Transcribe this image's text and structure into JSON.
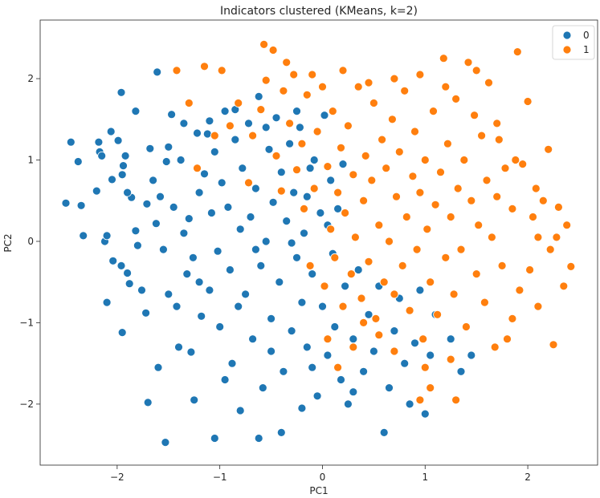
{
  "chart_data": {
    "type": "scatter",
    "title": "Indicators clustered (KMeans, k=2)",
    "xlabel": "PC1",
    "ylabel": "PC2",
    "xlim": [
      -2.75,
      2.68
    ],
    "ylim": [
      -2.75,
      2.72
    ],
    "xticks": [
      -2,
      -1,
      0,
      1,
      2
    ],
    "yticks": [
      -2,
      -1,
      0,
      1,
      2
    ],
    "xtick_labels": [
      "−2",
      "−1",
      "0",
      "1",
      "2"
    ],
    "ytick_labels": [
      "−2",
      "−1",
      "0",
      "1",
      "2"
    ],
    "grid": false,
    "legend": {
      "placement": "top-right",
      "entries": [
        "0",
        "1"
      ]
    },
    "colors": {
      "cluster_0": "#1f77b4",
      "cluster_1": "#ff7f0e",
      "marker_edge": "#ffffff"
    },
    "series": [
      {
        "name": "0",
        "color": "#1f77b4",
        "points": [
          [
            -2.5,
            0.47
          ],
          [
            -2.45,
            1.22
          ],
          [
            -2.38,
            0.98
          ],
          [
            -2.35,
            0.44
          ],
          [
            -2.33,
            0.07
          ],
          [
            -2.2,
            0.62
          ],
          [
            -2.18,
            1.22
          ],
          [
            -2.17,
            1.1
          ],
          [
            -2.15,
            1.05
          ],
          [
            -2.12,
            0.0
          ],
          [
            -2.1,
            0.07
          ],
          [
            -2.06,
            1.35
          ],
          [
            -2.05,
            0.76
          ],
          [
            -2.04,
            -0.24
          ],
          [
            -1.99,
            1.24
          ],
          [
            -1.96,
            1.83
          ],
          [
            -1.96,
            -0.3
          ],
          [
            -1.95,
            0.82
          ],
          [
            -1.94,
            0.93
          ],
          [
            -1.92,
            1.05
          ],
          [
            -1.9,
            -0.39
          ],
          [
            -1.88,
            -0.52
          ],
          [
            -1.86,
            0.54
          ],
          [
            -1.82,
            0.13
          ],
          [
            -1.82,
            1.6
          ],
          [
            -1.8,
            -0.05
          ],
          [
            -1.76,
            -0.6
          ],
          [
            -1.71,
            0.46
          ],
          [
            -1.68,
            1.14
          ],
          [
            -1.62,
            0.22
          ],
          [
            -1.61,
            2.08
          ],
          [
            -1.58,
            0.55
          ],
          [
            -1.55,
            -0.1
          ],
          [
            -1.52,
            0.98
          ],
          [
            -1.5,
            1.16
          ],
          [
            -1.47,
            1.56
          ],
          [
            -1.45,
            0.42
          ],
          [
            -1.42,
            -0.8
          ],
          [
            -1.38,
            1.0
          ],
          [
            -1.35,
            0.1
          ],
          [
            -1.32,
            -0.4
          ],
          [
            -1.3,
            0.28
          ],
          [
            -1.28,
            -1.36
          ],
          [
            -1.26,
            -0.2
          ],
          [
            -1.22,
            1.33
          ],
          [
            -1.2,
            0.6
          ],
          [
            -1.18,
            -0.92
          ],
          [
            -1.15,
            0.83
          ],
          [
            -1.12,
            1.32
          ],
          [
            -1.1,
            -0.6
          ],
          [
            -1.08,
            0.35
          ],
          [
            -1.05,
            1.1
          ],
          [
            -1.02,
            -0.12
          ],
          [
            -1.0,
            -1.05
          ],
          [
            -0.98,
            0.72
          ],
          [
            -0.95,
            1.6
          ],
          [
            -0.92,
            0.42
          ],
          [
            -0.9,
            -0.35
          ],
          [
            -0.88,
            -1.5
          ],
          [
            -0.85,
            1.25
          ],
          [
            -0.82,
            -0.8
          ],
          [
            -0.8,
            0.15
          ],
          [
            -0.78,
            0.9
          ],
          [
            -0.75,
            -0.65
          ],
          [
            -0.72,
            1.45
          ],
          [
            -0.7,
            0.3
          ],
          [
            -0.68,
            -1.2
          ],
          [
            -0.65,
            0.65
          ],
          [
            -0.62,
            1.78
          ],
          [
            -0.6,
            -0.3
          ],
          [
            -0.58,
            -1.8
          ],
          [
            -0.55,
            0.0
          ],
          [
            -0.52,
            1.13
          ],
          [
            -0.5,
            -0.95
          ],
          [
            -0.48,
            0.48
          ],
          [
            -0.45,
            1.52
          ],
          [
            -0.42,
            -0.5
          ],
          [
            -0.4,
            0.85
          ],
          [
            -0.38,
            -1.6
          ],
          [
            -0.35,
            0.25
          ],
          [
            -0.32,
            1.2
          ],
          [
            -0.3,
            -1.1
          ],
          [
            -0.28,
            0.6
          ],
          [
            -0.25,
            -0.2
          ],
          [
            -0.22,
            1.4
          ],
          [
            -0.2,
            -0.75
          ],
          [
            -0.18,
            0.1
          ],
          [
            -0.15,
            -1.3
          ],
          [
            -0.12,
            0.9
          ],
          [
            -0.1,
            -0.4
          ],
          [
            -0.08,
            1.0
          ],
          [
            -0.05,
            -1.9
          ],
          [
            -0.02,
            0.35
          ],
          [
            0.0,
            -0.8
          ],
          [
            0.02,
            1.55
          ],
          [
            0.05,
            -1.4
          ],
          [
            0.08,
            0.75
          ],
          [
            0.1,
            -0.15
          ],
          [
            0.12,
            -1.05
          ],
          [
            0.15,
            0.4
          ],
          [
            0.18,
            -1.7
          ],
          [
            0.2,
            0.95
          ],
          [
            0.22,
            -0.55
          ],
          [
            0.25,
            -2.0
          ],
          [
            0.3,
            -1.2
          ],
          [
            0.35,
            -0.35
          ],
          [
            0.4,
            -1.6
          ],
          [
            0.45,
            -0.9
          ],
          [
            0.5,
            -1.35
          ],
          [
            0.55,
            -0.55
          ],
          [
            0.6,
            -2.35
          ],
          [
            0.65,
            -1.8
          ],
          [
            0.7,
            -1.1
          ],
          [
            0.75,
            -0.7
          ],
          [
            0.8,
            -1.5
          ],
          [
            0.85,
            -2.0
          ],
          [
            0.9,
            -1.25
          ],
          [
            0.95,
            -0.6
          ],
          [
            1.0,
            -2.12
          ],
          [
            1.05,
            -1.4
          ],
          [
            1.1,
            -0.9
          ],
          [
            1.25,
            -1.2
          ],
          [
            1.35,
            -1.6
          ],
          [
            1.45,
            -1.4
          ],
          [
            -1.53,
            -2.47
          ],
          [
            -1.05,
            -2.42
          ],
          [
            -0.62,
            -2.42
          ],
          [
            -0.4,
            -2.35
          ],
          [
            -1.7,
            -1.98
          ],
          [
            -1.25,
            -1.95
          ],
          [
            -0.8,
            -2.08
          ],
          [
            -0.2,
            -2.05
          ],
          [
            -1.95,
            -1.12
          ],
          [
            -1.6,
            -1.55
          ],
          [
            -1.4,
            -1.3
          ],
          [
            -0.95,
            -1.7
          ],
          [
            -0.5,
            -1.35
          ],
          [
            -0.1,
            -1.55
          ],
          [
            0.3,
            -1.85
          ],
          [
            -2.1,
            -0.75
          ],
          [
            -1.72,
            -0.88
          ],
          [
            -1.5,
            -0.65
          ],
          [
            -1.2,
            -0.5
          ],
          [
            -0.65,
            -0.1
          ],
          [
            -0.3,
            -0.02
          ],
          [
            -0.15,
            0.55
          ],
          [
            0.05,
            0.2
          ],
          [
            -1.9,
            0.6
          ],
          [
            -1.65,
            0.75
          ],
          [
            -1.35,
            1.45
          ],
          [
            -1.1,
            1.48
          ],
          [
            -0.85,
            1.62
          ],
          [
            -0.55,
            1.4
          ],
          [
            -0.25,
            1.6
          ]
        ]
      },
      {
        "name": "1",
        "color": "#ff7f0e",
        "points": [
          [
            -1.22,
            0.9
          ],
          [
            -1.15,
            2.15
          ],
          [
            -1.05,
            1.3
          ],
          [
            -0.98,
            2.1
          ],
          [
            -0.9,
            1.42
          ],
          [
            -0.72,
            0.72
          ],
          [
            -0.6,
            1.62
          ],
          [
            -0.57,
            2.42
          ],
          [
            -0.55,
            1.98
          ],
          [
            -0.48,
            2.35
          ],
          [
            -0.45,
            1.05
          ],
          [
            -0.4,
            0.62
          ],
          [
            -0.38,
            1.85
          ],
          [
            -0.35,
            2.2
          ],
          [
            -0.32,
            1.45
          ],
          [
            -0.28,
            2.05
          ],
          [
            -0.25,
            0.88
          ],
          [
            -0.2,
            1.2
          ],
          [
            -0.18,
            0.4
          ],
          [
            -0.15,
            1.8
          ],
          [
            -0.12,
            -0.3
          ],
          [
            -0.08,
            0.65
          ],
          [
            -0.05,
            1.35
          ],
          [
            0.0,
            1.9
          ],
          [
            0.02,
            -0.55
          ],
          [
            0.05,
            0.92
          ],
          [
            0.08,
            0.15
          ],
          [
            0.1,
            1.6
          ],
          [
            0.12,
            -0.2
          ],
          [
            0.15,
            0.6
          ],
          [
            0.18,
            1.15
          ],
          [
            0.2,
            -0.8
          ],
          [
            0.22,
            0.35
          ],
          [
            0.25,
            1.42
          ],
          [
            0.28,
            -0.4
          ],
          [
            0.3,
            0.82
          ],
          [
            0.32,
            0.05
          ],
          [
            0.35,
            1.9
          ],
          [
            0.38,
            -0.7
          ],
          [
            0.4,
            0.5
          ],
          [
            0.42,
            1.05
          ],
          [
            0.45,
            -0.25
          ],
          [
            0.48,
            0.75
          ],
          [
            0.5,
            1.7
          ],
          [
            0.52,
            -0.95
          ],
          [
            0.55,
            0.2
          ],
          [
            0.58,
            1.25
          ],
          [
            0.6,
            -0.5
          ],
          [
            0.62,
            0.9
          ],
          [
            0.65,
            0.0
          ],
          [
            0.68,
            1.5
          ],
          [
            0.7,
            -0.65
          ],
          [
            0.72,
            0.55
          ],
          [
            0.75,
            1.1
          ],
          [
            0.78,
            -0.3
          ],
          [
            0.8,
            1.85
          ],
          [
            0.82,
            0.3
          ],
          [
            0.85,
            -0.85
          ],
          [
            0.88,
            0.8
          ],
          [
            0.9,
            1.35
          ],
          [
            0.92,
            -0.1
          ],
          [
            0.95,
            0.6
          ],
          [
            0.98,
            -1.2
          ],
          [
            1.0,
            1.0
          ],
          [
            1.02,
            0.15
          ],
          [
            1.05,
            -0.5
          ],
          [
            1.08,
            1.6
          ],
          [
            1.1,
            0.45
          ],
          [
            1.12,
            -0.9
          ],
          [
            1.15,
            0.85
          ],
          [
            1.18,
            2.25
          ],
          [
            1.2,
            -0.2
          ],
          [
            1.22,
            1.2
          ],
          [
            1.25,
            0.3
          ],
          [
            1.28,
            -0.65
          ],
          [
            1.3,
            1.75
          ],
          [
            1.32,
            0.65
          ],
          [
            1.35,
            -0.1
          ],
          [
            1.38,
            1.0
          ],
          [
            1.4,
            -1.05
          ],
          [
            1.42,
            2.2
          ],
          [
            1.45,
            0.5
          ],
          [
            1.48,
            1.55
          ],
          [
            1.5,
            -0.4
          ],
          [
            1.52,
            0.2
          ],
          [
            1.55,
            1.3
          ],
          [
            1.58,
            -0.75
          ],
          [
            1.6,
            0.75
          ],
          [
            1.62,
            1.95
          ],
          [
            1.65,
            0.05
          ],
          [
            1.68,
            -1.3
          ],
          [
            1.7,
            0.55
          ],
          [
            1.72,
            1.25
          ],
          [
            1.75,
            -0.3
          ],
          [
            1.78,
            0.9
          ],
          [
            1.8,
            -1.2
          ],
          [
            1.85,
            0.4
          ],
          [
            1.9,
            2.33
          ],
          [
            1.92,
            -0.6
          ],
          [
            1.95,
            0.95
          ],
          [
            2.0,
            1.72
          ],
          [
            2.02,
            -0.35
          ],
          [
            2.05,
            0.3
          ],
          [
            2.1,
            -0.8
          ],
          [
            2.15,
            0.5
          ],
          [
            2.2,
            1.13
          ],
          [
            2.22,
            -0.1
          ],
          [
            2.25,
            -1.27
          ],
          [
            2.3,
            0.42
          ],
          [
            2.35,
            -0.55
          ],
          [
            2.42,
            -0.31
          ],
          [
            2.38,
            0.2
          ],
          [
            2.1,
            0.05
          ],
          [
            1.85,
            -0.95
          ],
          [
            1.25,
            -1.45
          ],
          [
            1.05,
            -1.8
          ],
          [
            0.95,
            -1.95
          ],
          [
            1.0,
            -1.55
          ],
          [
            0.7,
            -1.35
          ],
          [
            0.55,
            -1.15
          ],
          [
            0.4,
            -1.0
          ],
          [
            0.3,
            -1.3
          ],
          [
            0.15,
            -1.55
          ],
          [
            0.05,
            -1.2
          ],
          [
            1.3,
            -1.95
          ],
          [
            -1.42,
            2.1
          ],
          [
            -1.3,
            1.7
          ],
          [
            -0.82,
            1.7
          ],
          [
            -0.68,
            1.3
          ],
          [
            -0.1,
            2.05
          ],
          [
            0.2,
            2.1
          ],
          [
            0.45,
            1.95
          ],
          [
            0.7,
            2.0
          ],
          [
            0.95,
            2.05
          ],
          [
            1.2,
            1.9
          ],
          [
            1.5,
            2.1
          ],
          [
            1.7,
            1.45
          ],
          [
            1.88,
            1.0
          ],
          [
            2.08,
            0.65
          ],
          [
            2.28,
            0.05
          ]
        ]
      }
    ]
  }
}
